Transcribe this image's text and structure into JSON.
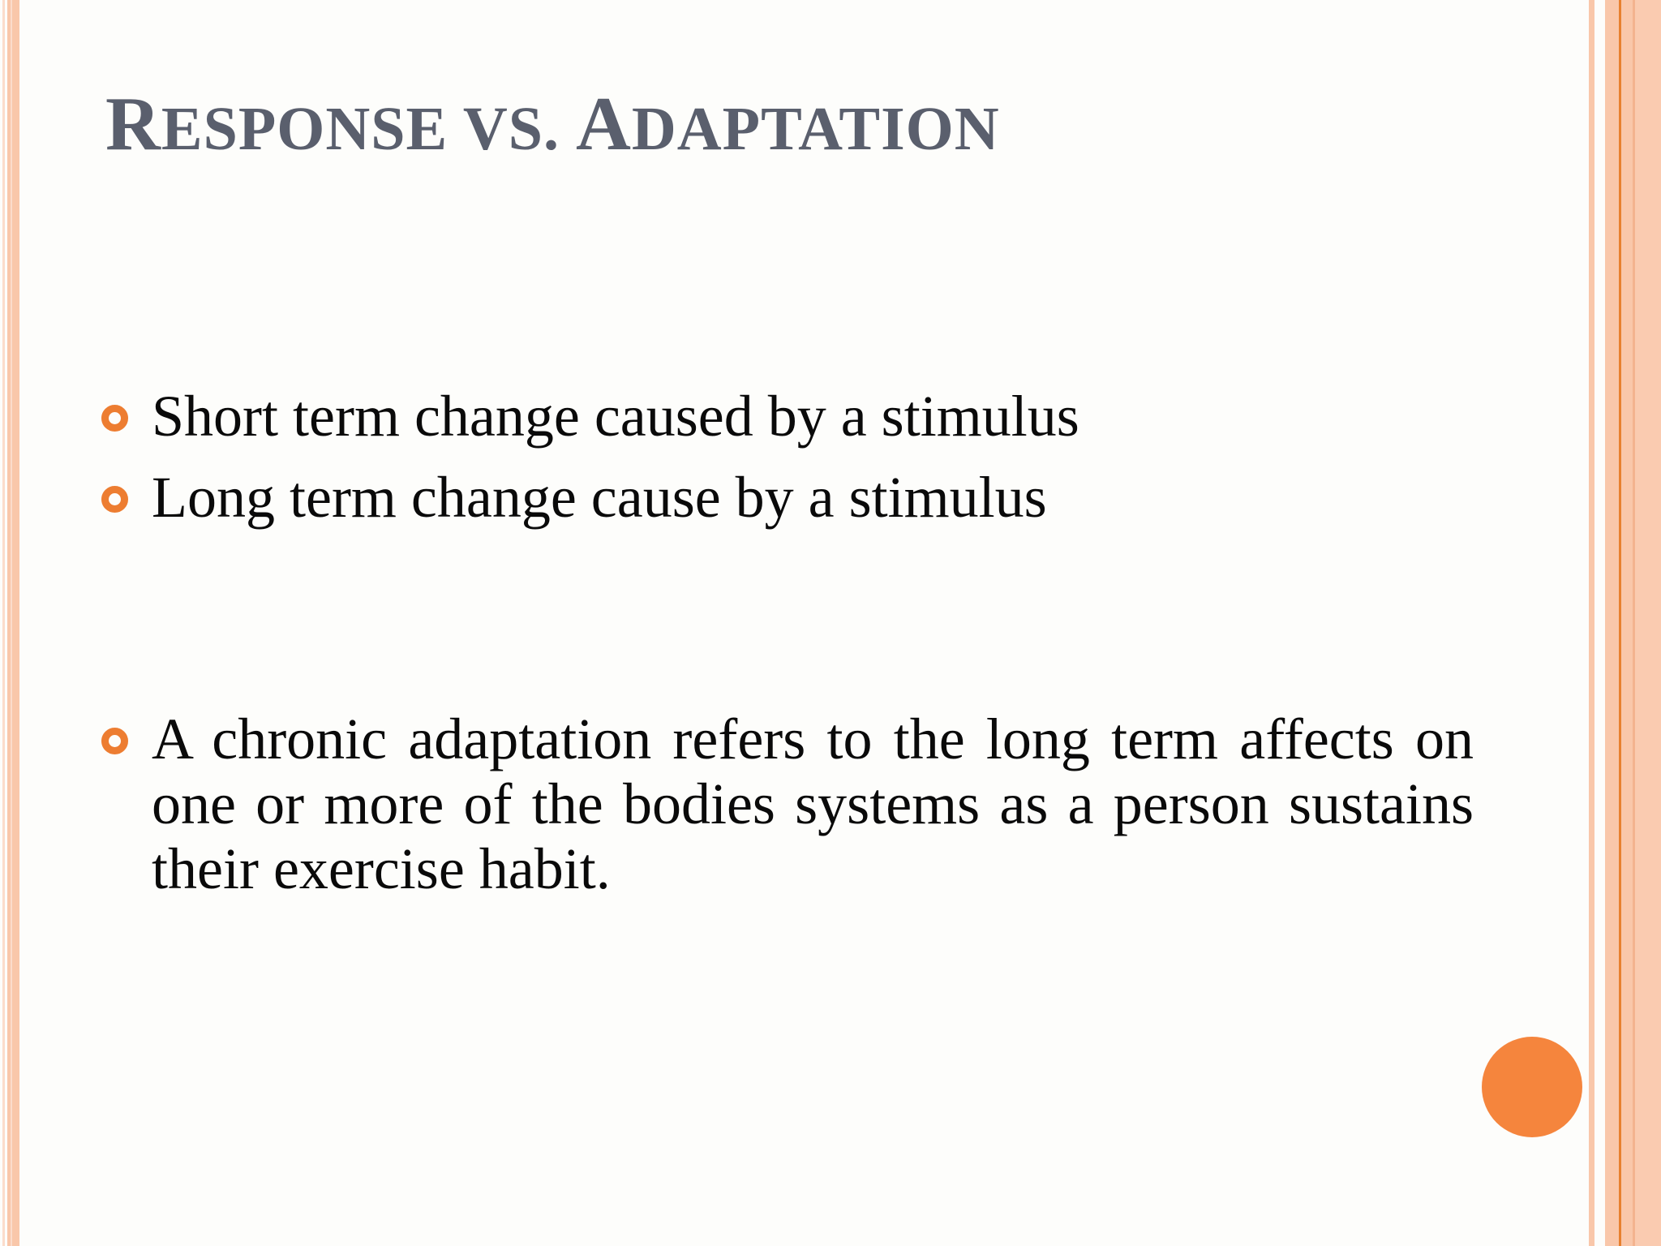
{
  "slide": {
    "title": {
      "part1_cap": "R",
      "part1_rest": "ESPONSE",
      "mid": " VS. ",
      "part2_cap": "A",
      "part2_rest": "DAPTATION"
    },
    "bullets": [
      "Short term change caused by a stimulus",
      "Long term change cause by a stimulus"
    ],
    "paragraph": {
      "text": "A chronic adaptation refers to the long term affects on one or more of the bodies systems as a person sustains their exercise habit."
    }
  },
  "colors": {
    "title_gray": "#5A5F6D",
    "body_text": "#0A0A0A",
    "bullet_orange": "#ED7D31",
    "circle_orange": "#F5853D",
    "border_peach": "#F9C7AA",
    "border_peach_light": "#FBDCCB",
    "border_peach_lighter": "#FACBB0",
    "border_peach_mid": "#F3B38F",
    "border_line_orange": "#E8802F",
    "slide_bg": "#FDFDFB"
  }
}
